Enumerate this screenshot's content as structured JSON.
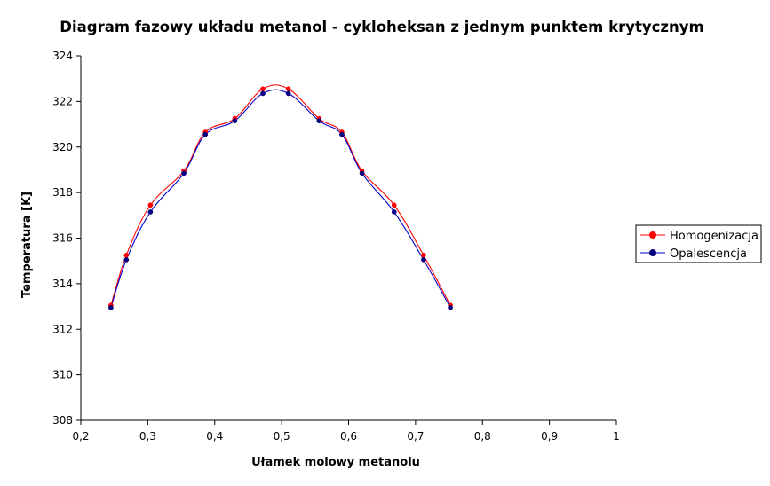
{
  "chart_data": {
    "type": "line",
    "title": "Diagram fazowy układu metanol - cykloheksan z jednym punktem krytycznym",
    "xlabel": "Ułamek molowy metanolu",
    "ylabel": "Temperatura [K]",
    "xlim": [
      0.2,
      1
    ],
    "ylim": [
      308,
      324
    ],
    "xticks": [
      "0,2",
      "0,3",
      "0,4",
      "0,5",
      "0,6",
      "0,7",
      "0,8",
      "0,9",
      "1"
    ],
    "yticks": [
      "308",
      "310",
      "312",
      "314",
      "316",
      "318",
      "320",
      "322",
      "324"
    ],
    "grid": false,
    "legend_position": "right",
    "series": [
      {
        "name": "Homogenizacja",
        "color": "#ff0000",
        "marker_color": "#ff0000",
        "x": [
          0.245,
          0.268,
          0.304,
          0.354,
          0.386,
          0.43,
          0.472,
          0.51,
          0.556,
          0.59,
          0.62,
          0.668,
          0.712,
          0.752
        ],
        "y": [
          313.05,
          315.25,
          317.45,
          318.95,
          320.65,
          321.25,
          322.55,
          322.55,
          321.25,
          320.65,
          318.95,
          317.45,
          315.25,
          313.05
        ]
      },
      {
        "name": "Opalescencja",
        "color": "#0000cc",
        "marker_color": "#000080",
        "x": [
          0.245,
          0.268,
          0.304,
          0.354,
          0.386,
          0.43,
          0.472,
          0.51,
          0.556,
          0.59,
          0.62,
          0.668,
          0.712,
          0.752
        ],
        "y": [
          312.95,
          315.05,
          317.15,
          318.85,
          320.55,
          321.15,
          322.35,
          322.35,
          321.15,
          320.55,
          318.85,
          317.15,
          315.05,
          312.95
        ]
      }
    ]
  }
}
